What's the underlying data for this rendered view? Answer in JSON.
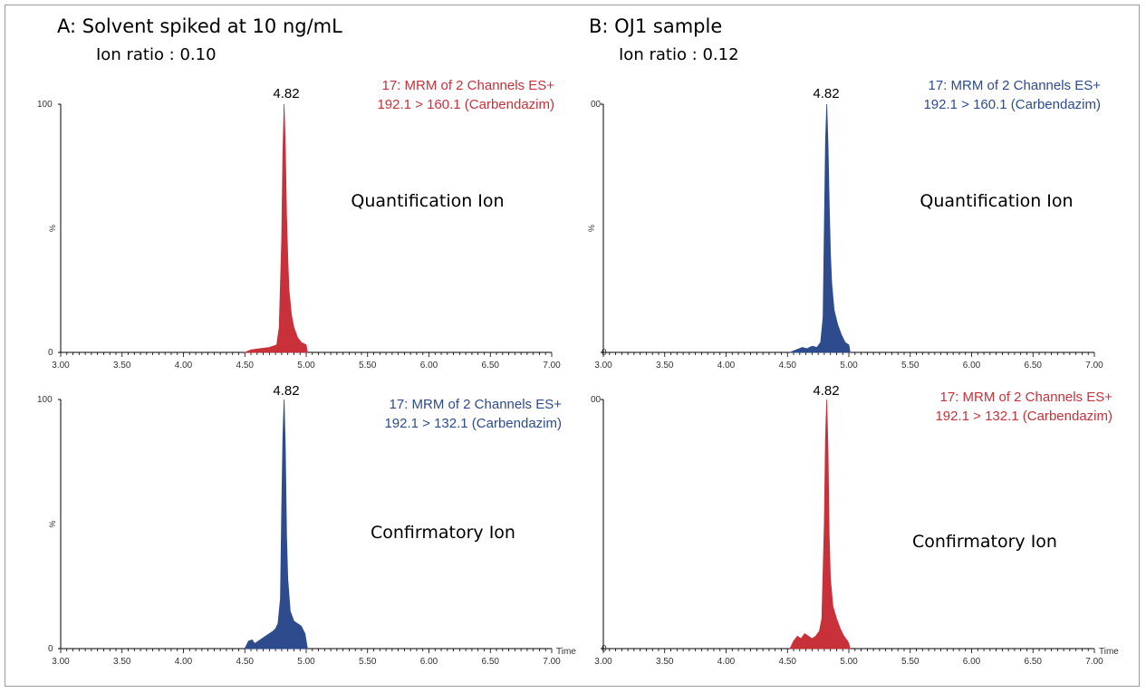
{
  "panels": {
    "A": {
      "title": "A: Solvent spiked at 10 ng/mL",
      "ratio": "Ion ratio : 0.10"
    },
    "B": {
      "title": "B: OJ1 sample",
      "ratio": "Ion ratio : 0.12"
    }
  },
  "colors": {
    "red": "#c8303a",
    "blue": "#2e4b8e"
  },
  "chart_data": [
    {
      "type": "area",
      "panel": "A",
      "color": "red",
      "peak_label": "4.82",
      "channel": [
        "17: MRM of 2 Channels ES+",
        "192.1 > 160.1 (Carbendazim)"
      ],
      "annotation": "Quantification Ion",
      "y_ticks": [
        "100",
        "%",
        "0"
      ],
      "x_title": "",
      "x": [
        4.5,
        4.55,
        4.62,
        4.7,
        4.76,
        4.78,
        4.8,
        4.81,
        4.82,
        4.83,
        4.84,
        4.85,
        4.86,
        4.88,
        4.9,
        4.93,
        4.96,
        5.0,
        5.01
      ],
      "y": [
        0,
        1,
        1.5,
        2,
        3,
        10,
        45,
        80,
        100,
        82,
        55,
        38,
        25,
        15,
        10,
        6,
        4,
        3,
        0
      ]
    },
    {
      "type": "area",
      "panel": "B",
      "color": "blue",
      "peak_label": "4.82",
      "channel": [
        "17: MRM of 2 Channels ES+",
        "192.1 > 160.1 (Carbendazim)"
      ],
      "annotation": "Quantification Ion",
      "y_ticks": [
        "00",
        "%",
        "0"
      ],
      "x_title": "",
      "x": [
        4.52,
        4.57,
        4.62,
        4.66,
        4.7,
        4.74,
        4.77,
        4.79,
        4.8,
        4.81,
        4.82,
        4.83,
        4.84,
        4.85,
        4.86,
        4.88,
        4.91,
        4.94,
        4.97,
        5.0,
        5.01
      ],
      "y": [
        0,
        1,
        2,
        1.5,
        2.5,
        2,
        4,
        14,
        50,
        85,
        100,
        84,
        60,
        40,
        28,
        17,
        11,
        7,
        4,
        3,
        0
      ]
    },
    {
      "type": "area",
      "panel": "A",
      "color": "blue",
      "peak_label": "4.82",
      "channel": [
        "17: MRM of 2 Channels ES+",
        "192.1 > 132.1 (Carbendazim)"
      ],
      "annotation": "Confirmatory Ion",
      "y_ticks": [
        "100",
        "%",
        "0"
      ],
      "x_title": "Time",
      "x": [
        4.5,
        4.53,
        4.56,
        4.58,
        4.61,
        4.64,
        4.67,
        4.7,
        4.73,
        4.75,
        4.77,
        4.79,
        4.8,
        4.81,
        4.82,
        4.83,
        4.84,
        4.85,
        4.87,
        4.9,
        4.93,
        4.96,
        4.99,
        5.0,
        5.01
      ],
      "y": [
        0,
        3,
        3.5,
        2,
        3,
        4,
        5,
        6,
        7,
        8,
        10,
        20,
        55,
        85,
        100,
        80,
        45,
        28,
        15,
        11,
        10,
        9,
        6,
        3,
        0
      ]
    },
    {
      "type": "area",
      "panel": "B",
      "color": "red",
      "peak_label": "4.82",
      "channel": [
        "17: MRM of 2 Channels ES+",
        "192.1 > 132.1 (Carbendazim)"
      ],
      "annotation": "Confirmatory Ion",
      "y_ticks": [
        "00",
        "",
        "0"
      ],
      "x_title": "Time",
      "x": [
        4.52,
        4.55,
        4.58,
        4.61,
        4.64,
        4.67,
        4.7,
        4.73,
        4.76,
        4.78,
        4.8,
        4.81,
        4.82,
        4.83,
        4.84,
        4.85,
        4.87,
        4.9,
        4.93,
        4.96,
        4.99,
        5.0,
        5.01
      ],
      "y": [
        0,
        3,
        5,
        4,
        6,
        5,
        4,
        5,
        7,
        12,
        50,
        85,
        100,
        80,
        45,
        28,
        17,
        12,
        8,
        5,
        3,
        2,
        0
      ]
    }
  ],
  "x_axis": {
    "range": [
      3.0,
      7.0
    ],
    "tick_labels": [
      "3.00",
      "3.50",
      "4.00",
      "4.50",
      "5.00",
      "5.50",
      "6.00",
      "6.50",
      "7.00"
    ]
  },
  "y_axis": {
    "range": [
      0,
      100
    ]
  }
}
